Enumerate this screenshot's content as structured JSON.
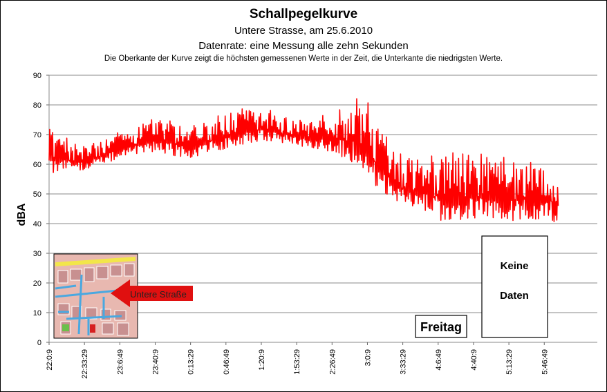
{
  "chart_data": {
    "type": "line",
    "title": "Schallpegelkurve",
    "subtitle": "Untere  Strasse, am 25.6.2010",
    "subtitle2": "Datenrate: eine Messung alle zehn Sekunden",
    "note": "Die Oberkante der Kurve zeigt die höchsten  gemessenen Werte  in der Zeit, die Unterkante  die niedrigsten Werte.",
    "ylabel": "dBA",
    "xlabel": "",
    "ylim": [
      0,
      90
    ],
    "yticks": [
      0,
      10,
      20,
      30,
      40,
      50,
      60,
      70,
      80,
      90
    ],
    "xticks": [
      "22:0:9",
      "22:33:29",
      "23:6:49",
      "23:40:9",
      "0:13:29",
      "0:46:49",
      "1:20:9",
      "1:53:29",
      "2:26:49",
      "3:0:9",
      "3:33:29",
      "4:6:49",
      "4:40:9",
      "5:13:29",
      "5:46:49"
    ],
    "grid": true,
    "series": [
      {
        "color": "#ff0000",
        "x": [
          "22:0:9",
          "22:33:29",
          "23:6:49",
          "23:40:9",
          "0:13:29",
          "0:46:49",
          "1:20:9",
          "1:53:29",
          "2:26:49",
          "3:0:9",
          "3:9:0",
          "3:33:29",
          "4:6:49",
          "4:40:9",
          "5:13:29",
          "5:46:49",
          "6:0:0"
        ],
        "upper": [
          72,
          66,
          71,
          76,
          73,
          78,
          80,
          75,
          77,
          85,
          73,
          63,
          65,
          64,
          63,
          60,
          62
        ],
        "lower": [
          57,
          58,
          62,
          64,
          62,
          65,
          68,
          66,
          64,
          58,
          52,
          46,
          41,
          41,
          41,
          41,
          40
        ]
      }
    ],
    "annotations": {
      "map_label": "Untere Straße",
      "day_label": "Freitag",
      "no_data_line1": "Keine",
      "no_data_line2": "Daten"
    }
  }
}
